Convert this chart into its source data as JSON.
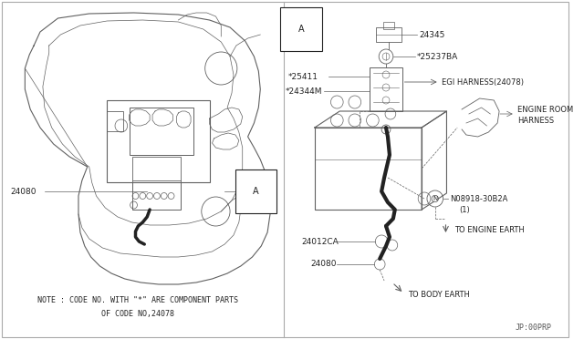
{
  "bg_color": "#ffffff",
  "line_color": "#606060",
  "dark_line": "#222222",
  "thin": 0.5,
  "med": 0.8,
  "fig_width": 6.4,
  "fig_height": 3.72,
  "footer": "JP:00PRP",
  "note1": "NOTE : CODE NO. WITH \"*\" ARE COMPONENT PARTS",
  "note2": "OF CODE NO,24078"
}
